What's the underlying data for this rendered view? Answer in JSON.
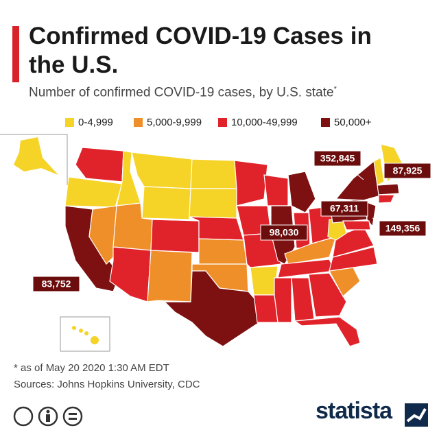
{
  "header": {
    "title": "Confirmed COVID-19 Cases in the U.S.",
    "subtitle": "Number of confirmed COVID-19 cases, by U.S. state",
    "subtitle_note": "*"
  },
  "legend": [
    {
      "label": "0-4,999",
      "color": "#f5d327"
    },
    {
      "label": "5,000-9,999",
      "color": "#ef8f2a"
    },
    {
      "label": "10,000-49,999",
      "color": "#e0232a"
    },
    {
      "label": "50,000+",
      "color": "#7d1010"
    }
  ],
  "callouts": [
    "352,845",
    "87,925",
    "67,311",
    "149,356",
    "98,030",
    "83,752"
  ],
  "footer": {
    "note": "* as of May 20 2020 1:30 AM EDT",
    "sources": "Sources: Johns Hopkins University, CDC",
    "brand": "statista"
  }
}
